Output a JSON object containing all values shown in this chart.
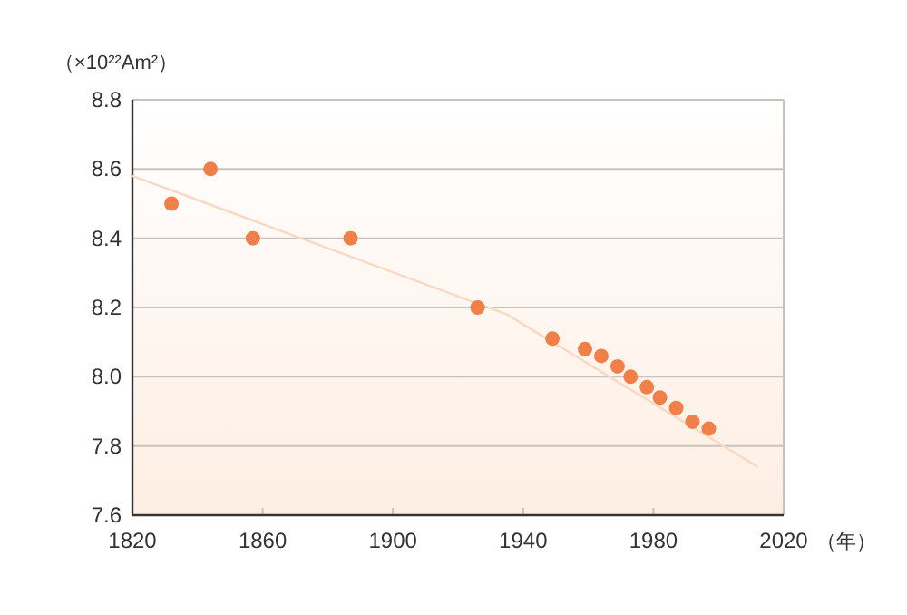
{
  "chart_data": {
    "type": "scatter",
    "ylabel": "（×10²²Am²）",
    "xlabel": "（年）",
    "series": [
      {
        "marker": "circle",
        "color": "#f07f4a",
        "x": [
          1832,
          1844,
          1857,
          1887,
          1926,
          1949,
          1959,
          1964,
          1969,
          1973,
          1978,
          1982,
          1987,
          1992,
          1997
        ],
        "values": [
          8.5,
          8.6,
          8.4,
          8.4,
          8.2,
          8.11,
          8.08,
          8.06,
          8.03,
          8.0,
          7.97,
          7.94,
          7.91,
          7.87,
          7.85
        ]
      },
      {
        "type": "line",
        "marker": "none",
        "color": "#f9d9c4",
        "x": [
          1820,
          1935,
          2012
        ],
        "values": [
          8.58,
          8.18,
          7.74
        ]
      }
    ],
    "xlim": [
      1820,
      2020
    ],
    "xticks": [
      1820,
      1860,
      1900,
      1940,
      1980,
      2020
    ],
    "ylim": [
      7.6,
      8.8
    ],
    "yticks": [
      7.6,
      7.8,
      {
        "value": 8,
        "label": "8.0"
      },
      8.2,
      8.4,
      8.6,
      8.8
    ],
    "grid": "y"
  }
}
